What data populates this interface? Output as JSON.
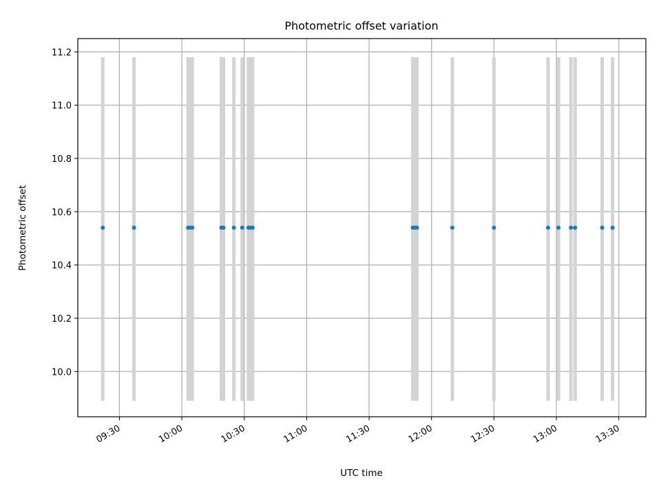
{
  "chart_data": {
    "type": "scatter",
    "title": "Photometric offset variation",
    "xlabel": "UTC time",
    "ylabel": "Photometric offset",
    "x_unit": "time of day (UTC, HH:MM)",
    "xlim": [
      "09:10",
      "13:43"
    ],
    "ylim": [
      9.83,
      11.25
    ],
    "grid": true,
    "x_ticks": [
      "09:30",
      "10:00",
      "10:30",
      "11:00",
      "11:30",
      "12:00",
      "12:30",
      "13:00",
      "13:30"
    ],
    "y_ticks": [
      10.0,
      10.2,
      10.4,
      10.6,
      10.8,
      11.0,
      11.2
    ],
    "y_tick_labels": [
      "10.0",
      "10.2",
      "10.4",
      "10.6",
      "10.8",
      "11.0",
      "11.2"
    ],
    "colors": {
      "points": "#1f77b4",
      "error_bars": "#d3d3d3",
      "grid": "#b0b0b0"
    },
    "series": [
      {
        "x": [
          "09:22",
          "09:37",
          "10:03",
          "10:04",
          "10:05",
          "10:19",
          "10:20",
          "10:25",
          "10:29",
          "10:32",
          "10:33",
          "10:34",
          "11:51",
          "11:52",
          "11:53",
          "12:10",
          "12:30",
          "12:56",
          "13:01",
          "13:07",
          "13:09",
          "13:22",
          "13:27"
        ],
        "y": [
          10.54,
          10.54,
          10.54,
          10.54,
          10.54,
          10.54,
          10.54,
          10.54,
          10.54,
          10.54,
          10.54,
          10.54,
          10.54,
          10.54,
          10.54,
          10.54,
          10.54,
          10.54,
          10.54,
          10.54,
          10.54,
          10.54,
          10.54
        ],
        "y_err_low": [
          9.89,
          9.89,
          9.89,
          9.89,
          9.89,
          9.89,
          9.89,
          9.89,
          9.89,
          9.89,
          9.89,
          9.89,
          9.89,
          9.89,
          9.89,
          9.89,
          9.89,
          9.89,
          9.89,
          9.89,
          9.89,
          9.89,
          9.89
        ],
        "y_err_high": [
          11.18,
          11.18,
          11.18,
          11.18,
          11.18,
          11.18,
          11.18,
          11.18,
          11.18,
          11.18,
          11.18,
          11.18,
          11.18,
          11.18,
          11.18,
          11.18,
          11.18,
          11.18,
          11.18,
          11.18,
          11.18,
          11.18,
          11.18
        ]
      }
    ]
  }
}
